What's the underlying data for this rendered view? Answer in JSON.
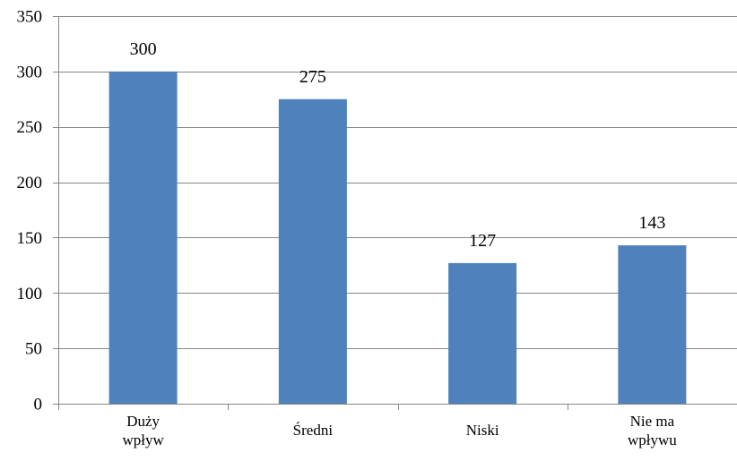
{
  "chart_data": {
    "type": "bar",
    "title": "",
    "xlabel": "",
    "ylabel": "",
    "categories": [
      [
        "Duży",
        "wpływ"
      ],
      [
        "Średni"
      ],
      [
        "Niski"
      ],
      [
        "Nie ma",
        "wpływu"
      ]
    ],
    "values": [
      300,
      275,
      127,
      143
    ],
    "value_labels": [
      "300",
      "275",
      "127",
      "143"
    ],
    "ylim": [
      0,
      350
    ],
    "yticks": [
      0,
      50,
      100,
      150,
      200,
      250,
      300,
      350
    ],
    "ytick_labels": [
      "0",
      "50",
      "100",
      "150",
      "200",
      "250",
      "300",
      "350"
    ],
    "grid": true,
    "legend": "none",
    "colors": {
      "bar": "#4F81BD",
      "grid": "#868686",
      "axis": "#868686",
      "text": "#000000"
    }
  }
}
